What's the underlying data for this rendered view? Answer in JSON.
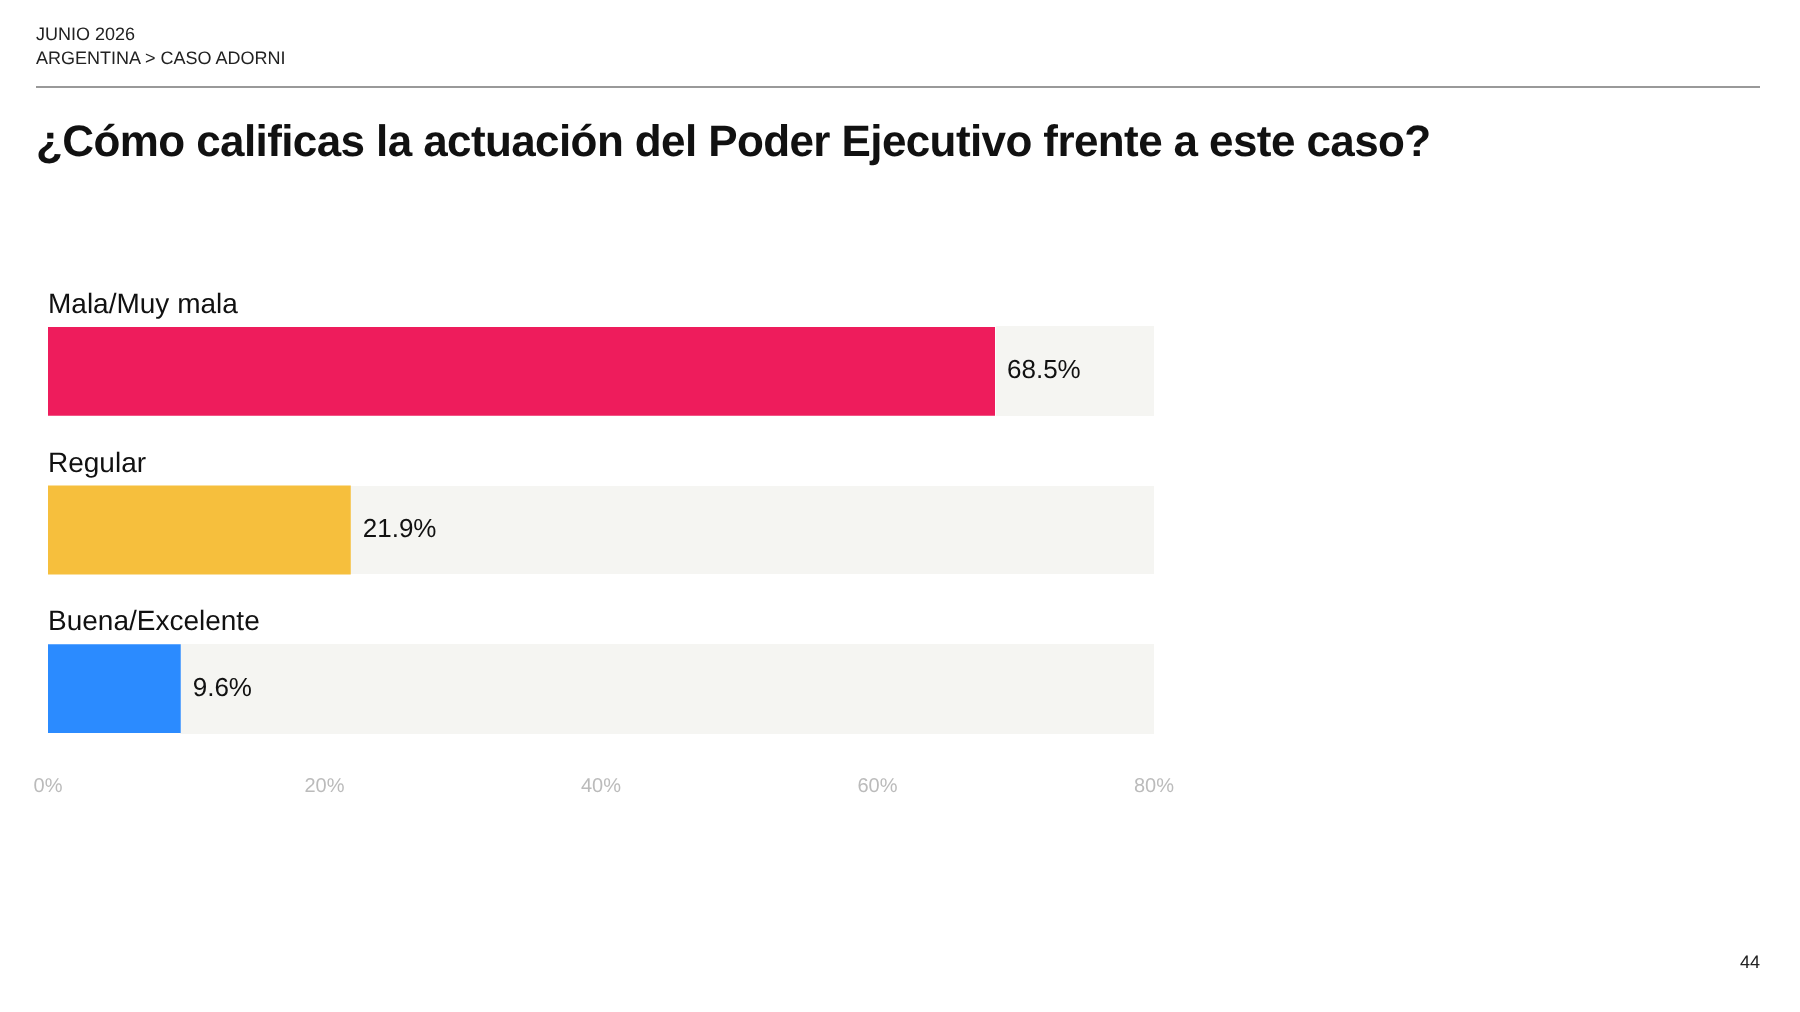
{
  "chart_data": {
    "type": "bar",
    "orientation": "horizontal",
    "title": "¿Cómo calificas la actuación del Poder Ejecutivo frente a este caso?",
    "annotations": [
      "JUNIO 2026",
      "ARGENTINA > CASO ADORNI",
      "44"
    ],
    "categories": [
      "Mala/Muy mala",
      "Regular",
      "Buena/Excelente"
    ],
    "values": [
      68.5,
      21.9,
      9.6
    ],
    "colors": [
      "#ee1c5c",
      "#f6bf3d",
      "#2b8bff"
    ],
    "value_labels": [
      "68.5%",
      "21.9%",
      "9.6%"
    ],
    "xlim": [
      0,
      80
    ],
    "xticks": [
      {
        "value": 0,
        "label": "0%"
      },
      {
        "value": 20,
        "label": "20%"
      },
      {
        "value": 40,
        "label": "40%"
      },
      {
        "value": 60,
        "label": "60%"
      },
      {
        "value": 80,
        "label": "80%"
      }
    ],
    "grid": false,
    "legend": false
  }
}
